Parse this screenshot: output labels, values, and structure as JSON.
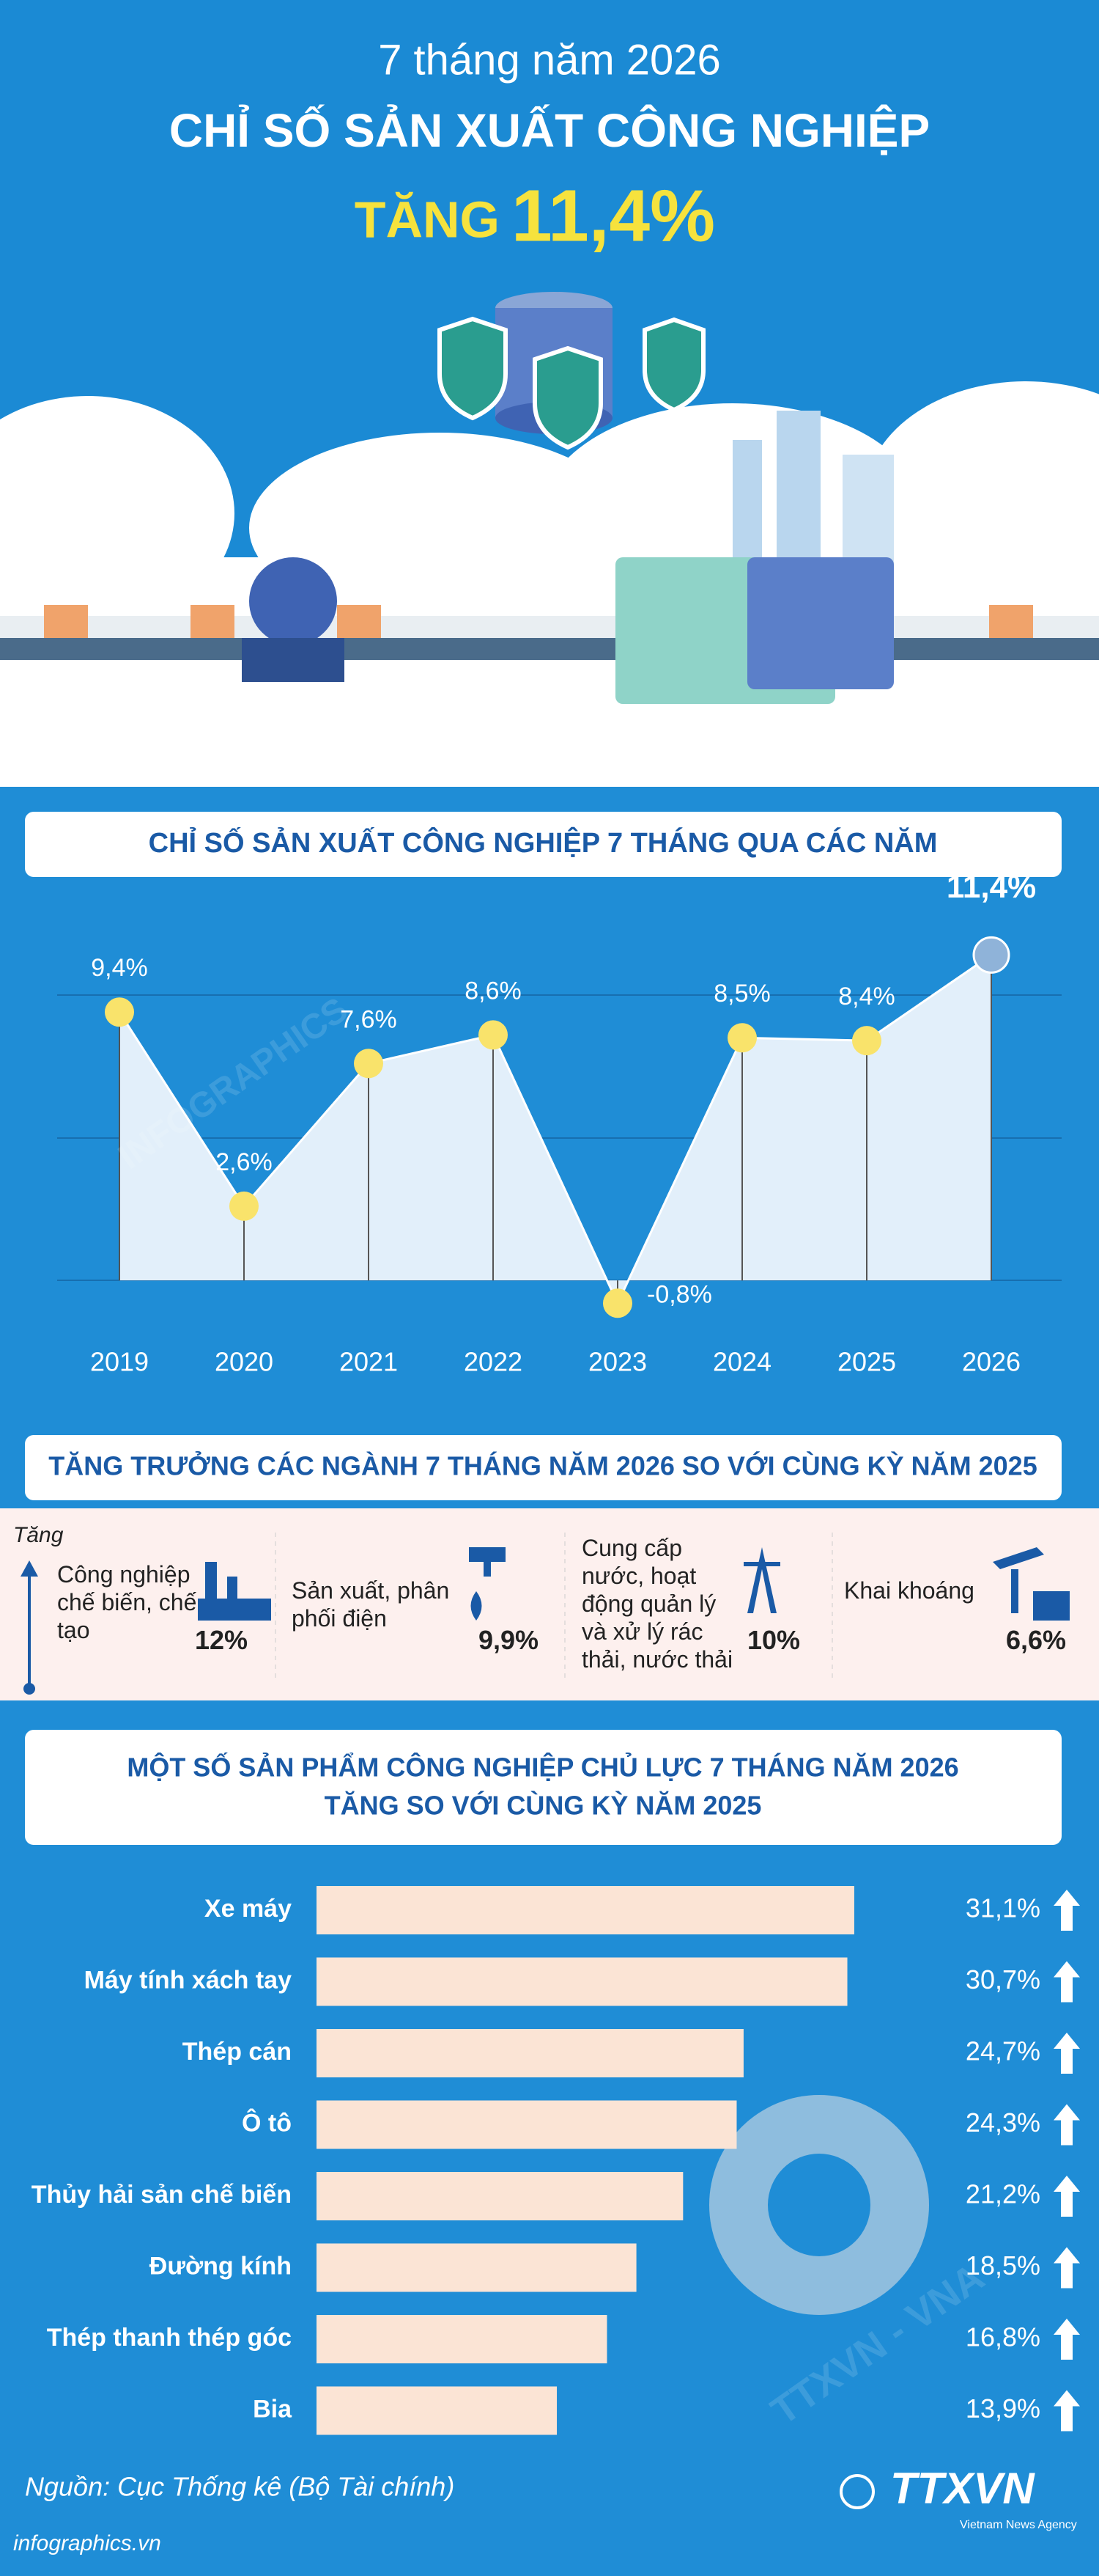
{
  "header": {
    "subtitle": "7 tháng năm 2026",
    "title": "CHỈ SỐ SẢN XUẤT CÔNG NGHIỆP",
    "highlight_prefix": "TĂNG",
    "highlight_value": "11,4%"
  },
  "chart_data": [
    {
      "type": "line",
      "title": "CHỈ SỐ SẢN XUẤT CÔNG NGHIỆP 7 THÁNG QUA CÁC NĂM",
      "categories": [
        "2019",
        "2020",
        "2021",
        "2022",
        "2023",
        "2024",
        "2025",
        "2026"
      ],
      "values": [
        9.4,
        2.6,
        7.6,
        8.6,
        -0.8,
        8.5,
        8.4,
        11.4
      ],
      "value_labels": [
        "9,4%",
        "2,6%",
        "7,6%",
        "8,6%",
        "-0,8%",
        "8,5%",
        "8,4%",
        "11,4%"
      ],
      "color": "#f9e36b",
      "highlight_color": "#8fb3d9",
      "fill": "#e2effa",
      "ylim": [
        -2,
        12
      ]
    },
    {
      "type": "hbar",
      "title": "MỘT SỐ SẢN PHẨM CÔNG NGHIỆP CHỦ LỰC 7 THÁNG NĂM 2026",
      "subtitle": "TĂNG SO VỚI CÙNG KỲ NĂM 2025",
      "categories": [
        "Xe máy",
        "Máy tính xách tay",
        "Thép cán",
        "Ô tô",
        "Thủy hải sản chế biến",
        "Đường kính",
        "Thép thanh thép góc",
        "Bia"
      ],
      "values": [
        31.1,
        30.7,
        24.7,
        24.3,
        21.2,
        18.5,
        16.8,
        13.9
      ],
      "value_labels": [
        "31,1%",
        "30,7%",
        "24,7%",
        "24,3%",
        "21,2%",
        "18,5%",
        "16,8%",
        "13,9%"
      ],
      "color": "#fbe4d5",
      "xlim": [
        0,
        35
      ]
    }
  ],
  "sectors": {
    "title": "TĂNG TRƯỞNG CÁC NGÀNH 7 THÁNG NĂM 2026 SO VỚI CÙNG KỲ NĂM 2025",
    "axis_label": "Tăng",
    "items": [
      {
        "name": "Công nghiệp chế biến, chế tạo",
        "value": "12%"
      },
      {
        "name": "Sản xuất, phân phối điện",
        "value": "9,9%"
      },
      {
        "name": "Cung cấp nước, hoạt động quản lý và xử lý rác thải, nước thải",
        "value": "10%"
      },
      {
        "name": "Khai khoáng",
        "value": "6,6%"
      }
    ]
  },
  "footer": {
    "source": "Nguồn: Cục Thống kê (Bộ Tài chính)",
    "website": "infographics.vn",
    "logo": "TTXVN",
    "agency": "Vietnam News Agency"
  },
  "watermarks": [
    "INFOGRAPHICS",
    "TTXVN - VNA"
  ]
}
